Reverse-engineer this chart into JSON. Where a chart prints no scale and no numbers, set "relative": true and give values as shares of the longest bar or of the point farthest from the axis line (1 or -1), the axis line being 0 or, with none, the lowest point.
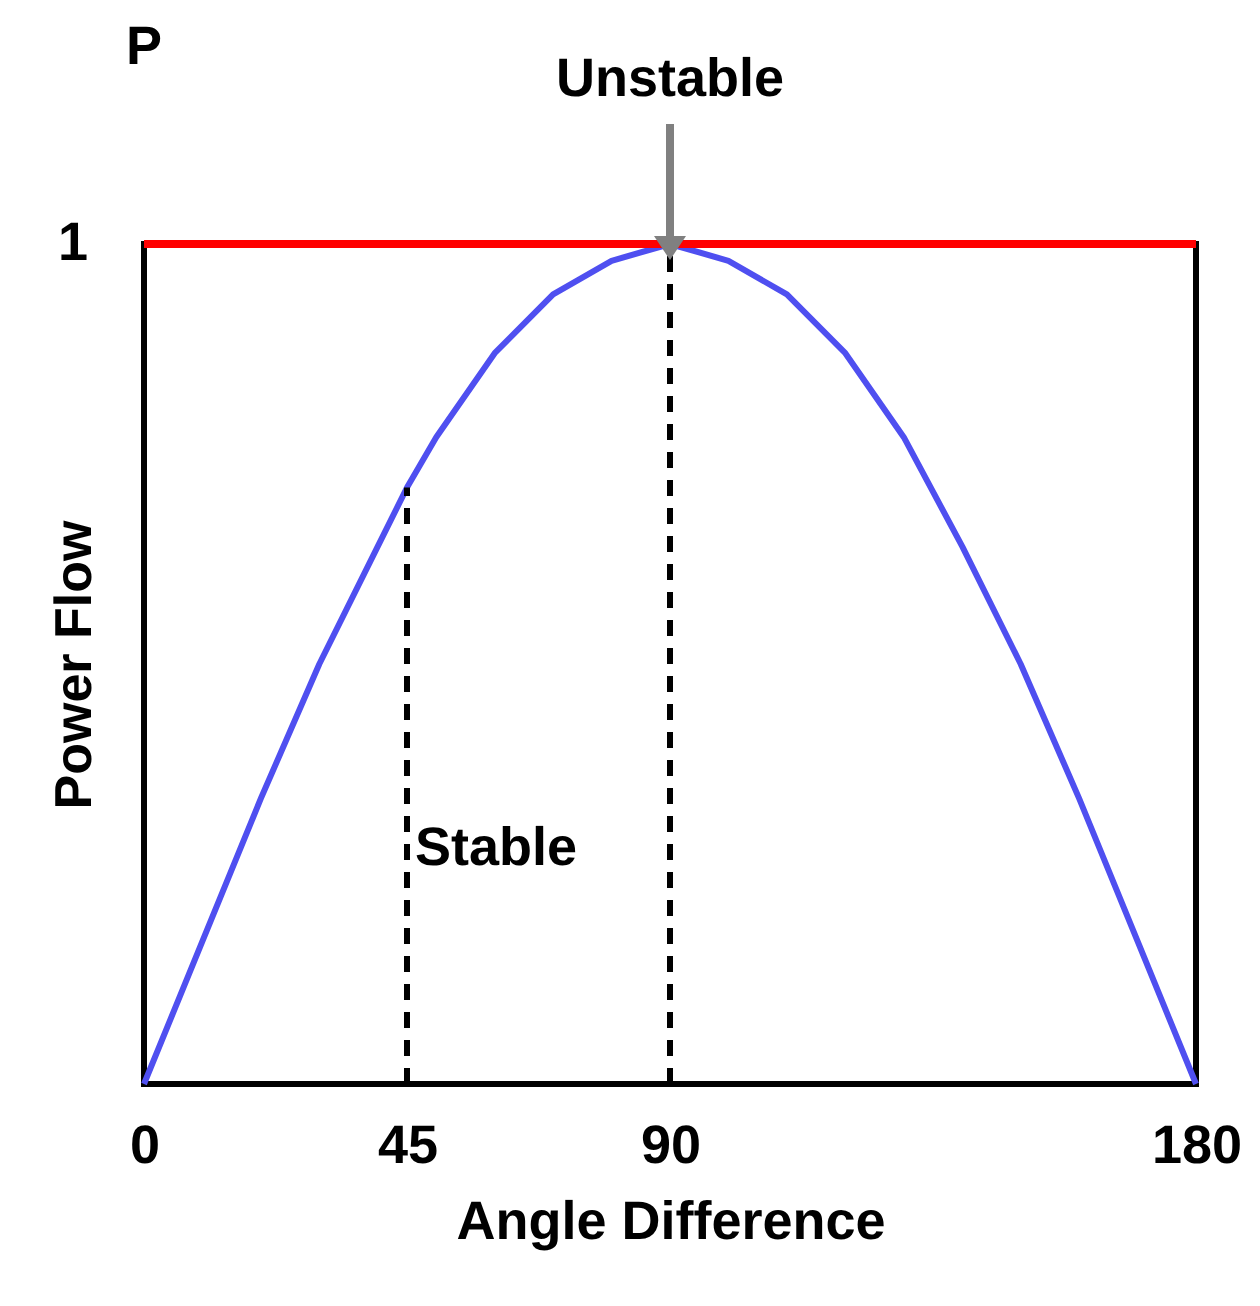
{
  "chart_data": {
    "type": "line",
    "xlabel": "Angle Difference",
    "ylabel": "Power Flow",
    "relative": true,
    "x": [
      0,
      10,
      20,
      30,
      40,
      45,
      50,
      60,
      70,
      80,
      90,
      100,
      110,
      120,
      130,
      140,
      150,
      160,
      170,
      180
    ],
    "series": [
      {
        "color": "#4f4ff0",
        "values": [
          0,
          0.17,
          0.34,
          0.5,
          0.64,
          0.71,
          0.77,
          0.87,
          0.94,
          0.98,
          1,
          0.98,
          0.94,
          0.87,
          0.77,
          0.64,
          0.5,
          0.34,
          0.17,
          0
        ]
      }
    ],
    "xlim": [
      0,
      180
    ],
    "xticks": [
      0,
      45,
      90,
      180
    ],
    "grid": false,
    "ref_lines": [
      {
        "axis": "y",
        "value": 1,
        "label": "1",
        "color": "#ff0000",
        "line_style": "solid"
      },
      {
        "axis": "x",
        "value": 45,
        "color": "#000000",
        "line_style": "dashed"
      },
      {
        "axis": "x",
        "value": 90,
        "color": "#000000",
        "line_style": "dashed"
      }
    ],
    "annotations": [
      "P",
      {
        "text": "Unstable",
        "x": 90,
        "y": 1
      },
      {
        "text": "Stable",
        "x": 45,
        "y": 0.28
      }
    ]
  }
}
